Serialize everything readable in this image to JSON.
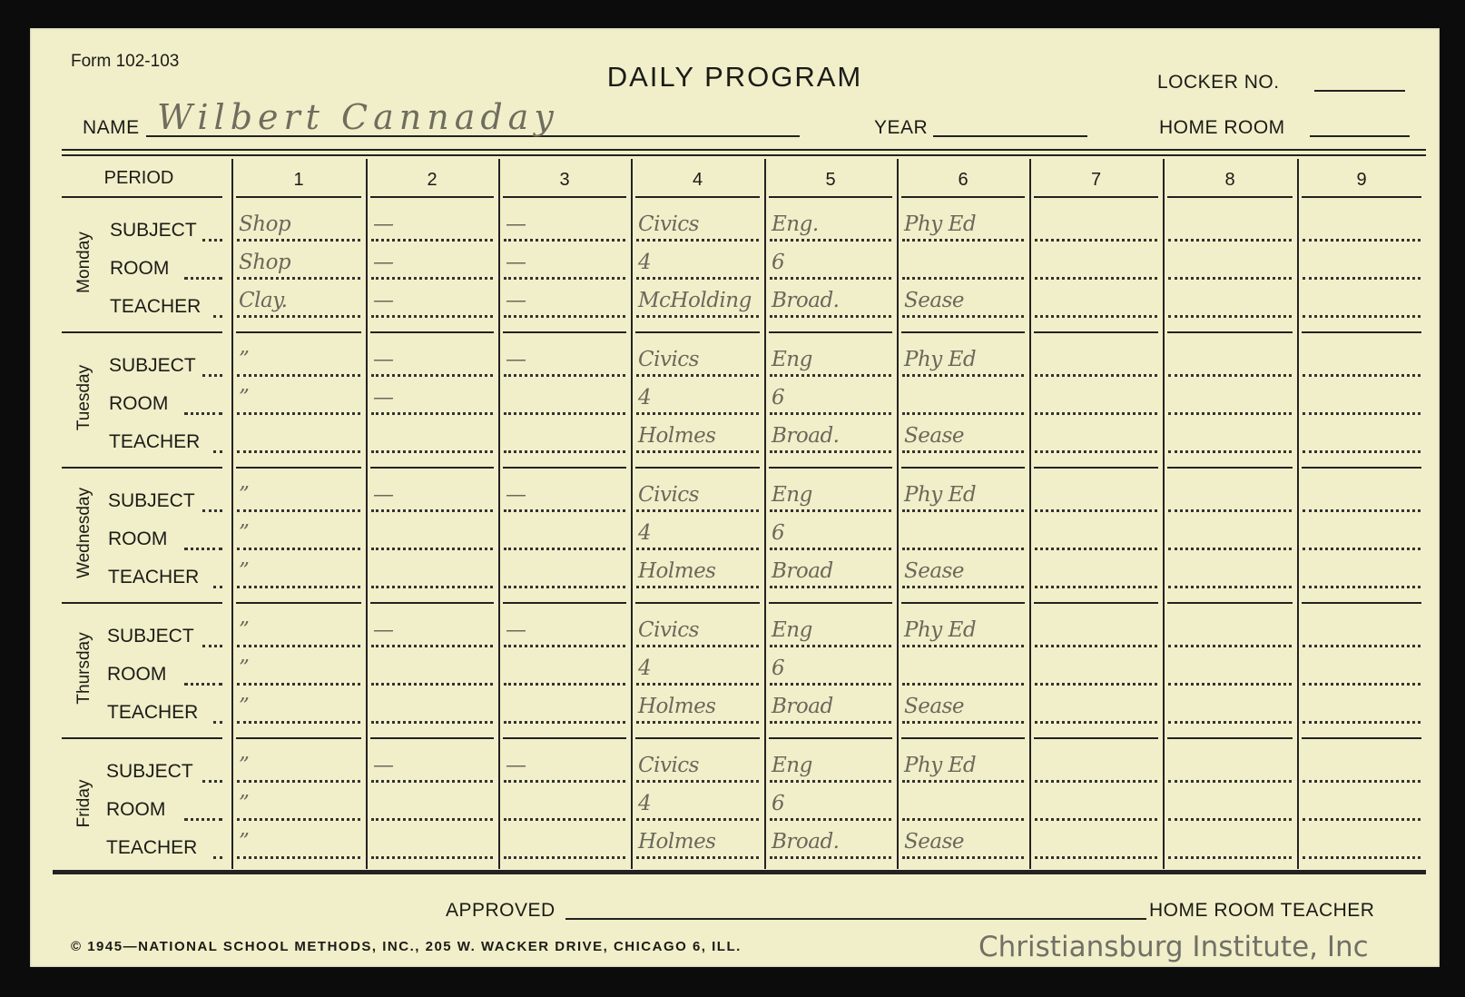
{
  "header": {
    "form_number": "Form 102-103",
    "title": "DAILY PROGRAM",
    "locker_label": "LOCKER NO.",
    "locker_value": "",
    "name_label": "NAME",
    "name_value": "Wilbert Cannaday",
    "year_label": "YEAR",
    "year_value": "",
    "home_room_label": "HOME ROOM",
    "home_room_value": ""
  },
  "table": {
    "period_label": "PERIOD",
    "periods": [
      "1",
      "2",
      "3",
      "4",
      "5",
      "6",
      "7",
      "8",
      "9"
    ],
    "row_labels": [
      "SUBJECT",
      "ROOM",
      "TEACHER"
    ],
    "days": [
      {
        "name": "Monday",
        "rows": [
          [
            "Shop",
            "—",
            "—",
            "Civics",
            "Eng.",
            "Phy Ed",
            "",
            "",
            ""
          ],
          [
            "Shop",
            "—",
            "—",
            "4",
            "6",
            "",
            "",
            "",
            ""
          ],
          [
            "Clay.",
            "—",
            "—",
            "McHolding",
            "Broad.",
            "Sease",
            "",
            "",
            ""
          ]
        ]
      },
      {
        "name": "Tuesday",
        "rows": [
          [
            "”",
            "—",
            "—",
            "Civics",
            "Eng",
            "Phy Ed",
            "",
            "",
            ""
          ],
          [
            "”",
            "—",
            "",
            "4",
            "6",
            "",
            "",
            "",
            ""
          ],
          [
            "",
            "",
            "",
            "Holmes",
            "Broad.",
            "Sease",
            "",
            "",
            ""
          ]
        ]
      },
      {
        "name": "Wednesday",
        "rows": [
          [
            "”",
            "—",
            "—",
            "Civics",
            "Eng",
            "Phy Ed",
            "",
            "",
            ""
          ],
          [
            "”",
            "",
            "",
            "4",
            "6",
            "",
            "",
            "",
            ""
          ],
          [
            "”",
            "",
            "",
            "Holmes",
            "Broad",
            "Sease",
            "",
            "",
            ""
          ]
        ]
      },
      {
        "name": "Thursday",
        "rows": [
          [
            "”",
            "—",
            "—",
            "Civics",
            "Eng",
            "Phy Ed",
            "",
            "",
            ""
          ],
          [
            "”",
            "",
            "",
            "4",
            "6",
            "",
            "",
            "",
            ""
          ],
          [
            "”",
            "",
            "",
            "Holmes",
            "Broad",
            "Sease",
            "",
            "",
            ""
          ]
        ]
      },
      {
        "name": "Friday",
        "rows": [
          [
            "”",
            "—",
            "—",
            "Civics",
            "Eng",
            "Phy Ed",
            "",
            "",
            ""
          ],
          [
            "”",
            "",
            "",
            "4",
            "6",
            "",
            "",
            "",
            ""
          ],
          [
            "”",
            "",
            "",
            "Holmes",
            "Broad.",
            "Sease",
            "",
            "",
            ""
          ]
        ]
      }
    ]
  },
  "footer": {
    "approved_label": "APPROVED",
    "home_room_teacher_label": "HOME ROOM TEACHER",
    "copyright": "© 1945—NATIONAL SCHOOL METHODS, INC., 205 W. WACKER DRIVE, CHICAGO 6, ILL.",
    "watermark": "Christiansburg Institute, Inc"
  }
}
